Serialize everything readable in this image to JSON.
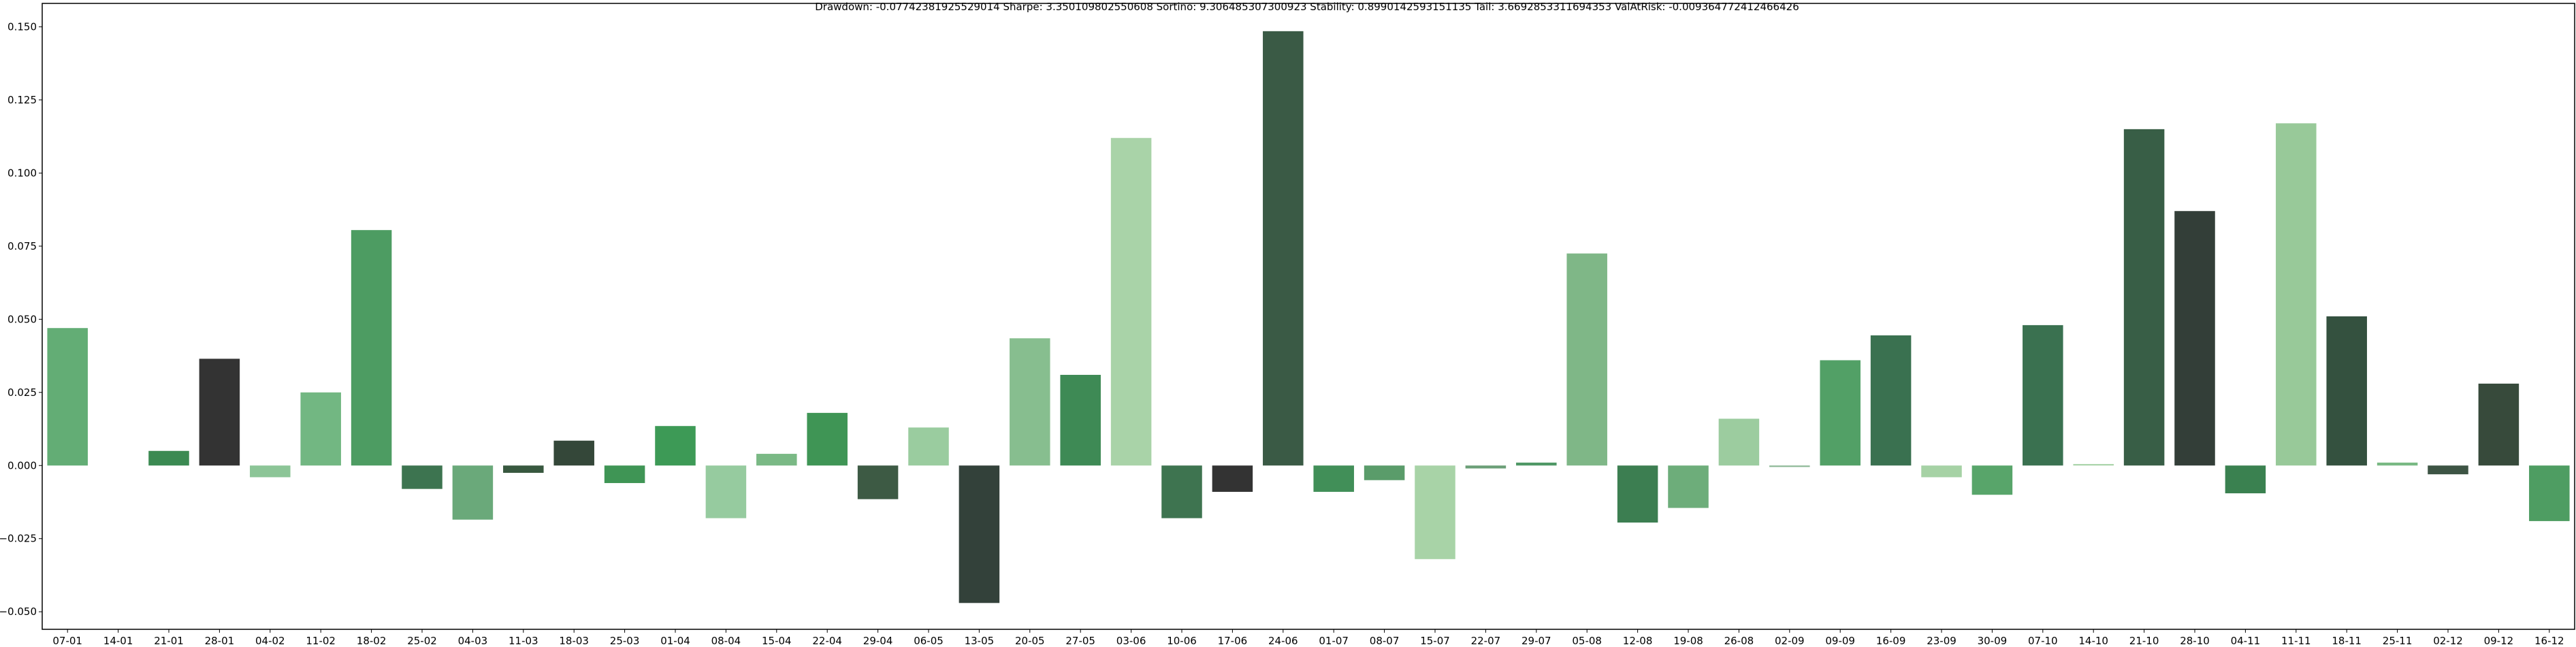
{
  "chart_data": {
    "type": "bar",
    "title": "Drawdown: -0.07742381925529014 Sharpe: 3.350109802550608 Sortino: 9.306485307300923 Stability: 0.8990142593151135 Tail: 3.6692853311694353 ValAtRisk: -0.009364772412466426",
    "xlabel": "",
    "ylabel": "",
    "ylim": [
      -0.056,
      0.158
    ],
    "yticks": [
      -0.05,
      -0.025,
      0.0,
      0.025,
      0.05,
      0.075,
      0.1,
      0.125,
      0.15
    ],
    "ytick_labels": [
      "−0.050",
      "−0.025",
      "0.000",
      "0.025",
      "0.050",
      "0.075",
      "0.100",
      "0.125",
      "0.150"
    ],
    "grid": false,
    "legend": "none",
    "categories": [
      "07-01",
      "14-01",
      "21-01",
      "28-01",
      "04-02",
      "11-02",
      "18-02",
      "25-02",
      "04-03",
      "11-03",
      "18-03",
      "25-03",
      "01-04",
      "08-04",
      "15-04",
      "22-04",
      "29-04",
      "06-05",
      "13-05",
      "20-05",
      "27-05",
      "03-06",
      "10-06",
      "17-06",
      "24-06",
      "01-07",
      "08-07",
      "15-07",
      "22-07",
      "29-07",
      "05-08",
      "12-08",
      "19-08",
      "26-08",
      "02-09",
      "09-09",
      "16-09",
      "23-09",
      "30-09",
      "07-10",
      "14-10",
      "21-10",
      "28-10",
      "04-11",
      "11-11",
      "18-11",
      "25-11",
      "02-12",
      "09-12",
      "16-12"
    ],
    "values": [
      0.047,
      0.0,
      0.005,
      0.0365,
      -0.004,
      0.025,
      0.0805,
      -0.008,
      -0.0185,
      -0.0025,
      0.0085,
      -0.006,
      0.0135,
      -0.018,
      0.004,
      0.018,
      -0.0115,
      0.013,
      -0.047,
      0.0435,
      0.031,
      0.112,
      -0.018,
      -0.009,
      0.1485,
      -0.009,
      -0.005,
      -0.032,
      -0.001,
      0.001,
      0.0725,
      -0.0195,
      -0.0145,
      0.016,
      -0.0005,
      0.036,
      0.0445,
      -0.004,
      -0.01,
      0.048,
      0.0005,
      0.115,
      0.087,
      -0.0095,
      0.117,
      0.051,
      0.001,
      -0.003,
      0.028,
      -0.019
    ],
    "colors": [
      "#63ad75",
      "#ffffff",
      "#3b8a52",
      "#333333",
      "#8cc597",
      "#72b782",
      "#4d9c62",
      "#3d7450",
      "#6aa97a",
      "#38583f",
      "#344739",
      "#3f9555",
      "#3d9a56",
      "#96cb9f",
      "#7ab985",
      "#3f9555",
      "#3d5a44",
      "#9acc9f",
      "#33413a",
      "#87be8f",
      "#3e8a55",
      "#a9d3a8",
      "#3e7450",
      "#333333",
      "#3a5a45",
      "#418f58",
      "#5a9c6a",
      "#a8d3a7",
      "#6b9f77",
      "#4f9866",
      "#7fb787",
      "#3c7e51",
      "#6dad7a",
      "#9ccc9f",
      "#8ab693",
      "#52a066",
      "#3a7150",
      "#a6d2a5",
      "#58a56a",
      "#3a7150",
      "#a8d3a7",
      "#385e46",
      "#333e38",
      "#3a8150",
      "#98c999",
      "#34513f",
      "#79b984",
      "#3d5444",
      "#374a3b",
      "#4e9d62"
    ]
  }
}
